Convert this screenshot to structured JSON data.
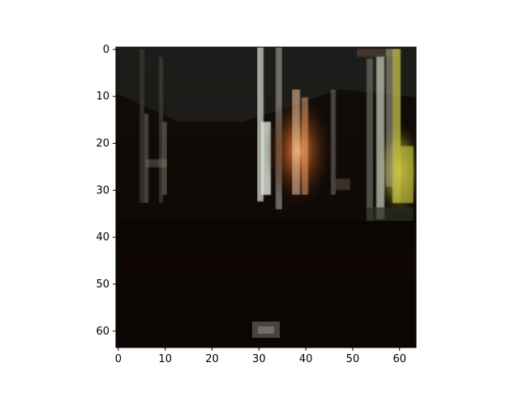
{
  "figure": {
    "x_ticks": [
      "0",
      "10",
      "20",
      "30",
      "40",
      "50",
      "60"
    ],
    "y_ticks": [
      "0",
      "10",
      "20",
      "30",
      "40",
      "50",
      "60"
    ],
    "x_range": [
      -0.5,
      63.5
    ],
    "y_range": [
      -0.5,
      63.5
    ],
    "y_axis_inverted": true,
    "image_description_hint": "64x64 pixelated dark night scene with vertical light streaks"
  },
  "colors": {
    "background": "#ffffff",
    "axes": "#000000"
  }
}
